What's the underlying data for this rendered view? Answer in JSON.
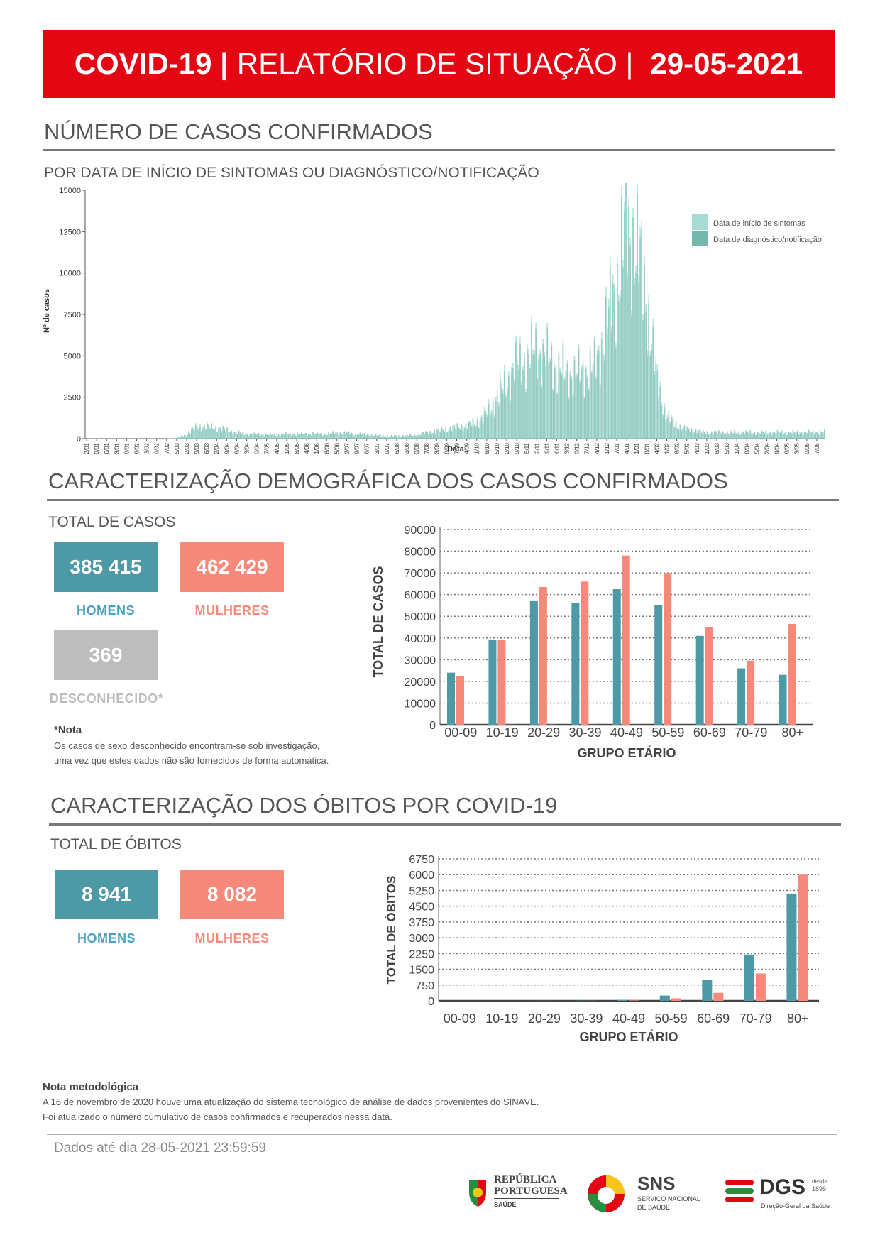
{
  "header": {
    "part1": "COVID-19 |",
    "part2": "RELATÓRIO DE SITUAÇÃO |",
    "date": "29-05-2021"
  },
  "cases_section": {
    "title": "NÚMERO DE CASOS CONFIRMADOS",
    "subtitle": "POR DATA DE INÍCIO DE SINTOMAS OU DIAGNÓSTICO/NOTIFICAÇÃO"
  },
  "demographics_section": {
    "title": "CARACTERIZAÇÃO DEMOGRÁFICA DOS CASOS CONFIRMADOS",
    "total_label": "TOTAL DE CASOS",
    "men_value": "385 415",
    "men_label": "HOMENS",
    "women_value": "462 429",
    "women_label": "MULHERES",
    "unknown_value": "369",
    "unknown_label": "DESCONHECIDO*",
    "note_title": "*Nota",
    "note_line1": "Os casos de sexo desconhecido encontram-se sob investigação,",
    "note_line2": "uma vez que estes dados não são fornecidos de forma automática."
  },
  "deaths_section": {
    "title": "CARACTERIZAÇÃO DOS ÓBITOS POR COVID-19",
    "total_label": "TOTAL DE ÓBITOS",
    "men_value": "8 941",
    "men_label": "HOMENS",
    "women_value": "8 082",
    "women_label": "MULHERES"
  },
  "methodology": {
    "title": "Nota metodológica",
    "line1": "A 16 de novembro de 2020 houve uma atualização do sistema tecnológico de análise de dados provenientes do SINAVE.",
    "line2": "Foi atualizado o número cumulativo de casos confirmados e recuperados nessa data."
  },
  "footer": {
    "data_until": "Dados até dia 28-05-2021 23:59:59"
  },
  "logos": {
    "rp_line1": "REPÚBLICA",
    "rp_line2": "PORTUGUESA",
    "rp_line3": "SAÚDE",
    "sns_title": "SNS",
    "sns_line1": "SERVIÇO NACIONAL",
    "sns_line2": "DE SAÚDE",
    "dgs_title": "DGS",
    "dgs_since1": "desde",
    "dgs_since2": "1899",
    "dgs_sub": "Direção-Geral da Saúde"
  },
  "colors": {
    "red": "#e30613",
    "teal": "#4d9aa6",
    "salmon": "#f7897a",
    "grey": "#bdbdbd",
    "mint_light": "#a6dcd3",
    "mint_dark": "#72b8ad"
  },
  "chart_data": [
    {
      "type": "area",
      "xlabel": "Data",
      "ylabel": "Nº de casos",
      "ylim": [
        0,
        15000
      ],
      "yticks": [
        0,
        2500,
        5000,
        7500,
        10000,
        12500,
        15000
      ],
      "legend_position": "top-right",
      "series_names": [
        "Data de início de sintomas",
        "Data de diagnóstico/notificação"
      ],
      "x_tick_labels": [
        "02/01",
        "09/01",
        "16/01",
        "23/01",
        "30/01",
        "06/02",
        "13/02",
        "20/02",
        "27/02",
        "05/03",
        "12/03",
        "19/03",
        "26/03",
        "02/04",
        "09/04",
        "16/04",
        "23/04",
        "30/04",
        "07/05",
        "14/05",
        "21/05",
        "28/05",
        "04/06",
        "11/06",
        "18/06",
        "25/06",
        "02/07",
        "09/07",
        "16/07",
        "23/07",
        "30/07",
        "06/08",
        "13/08",
        "20/08",
        "27/08",
        "03/09",
        "10/09",
        "17/09",
        "24/09",
        "01/10",
        "08/10",
        "15/10",
        "22/10",
        "29/10",
        "05/11",
        "12/11",
        "19/11",
        "26/11",
        "03/12",
        "10/12",
        "17/12",
        "24/12",
        "31/12",
        "07/01",
        "14/01",
        "21/01",
        "28/01",
        "04/02",
        "11/02",
        "18/02",
        "25/02",
        "04/03",
        "11/03",
        "18/03",
        "25/03",
        "01/04",
        "08/04",
        "15/04",
        "22/04",
        "29/04",
        "06/05",
        "13/05",
        "20/05",
        "27/05"
      ],
      "weekly_symptoms": [
        0,
        0,
        0,
        0,
        0,
        0,
        0,
        0,
        0,
        50,
        300,
        700,
        800,
        700,
        550,
        400,
        300,
        280,
        250,
        250,
        280,
        300,
        300,
        300,
        300,
        350,
        350,
        300,
        250,
        200,
        180,
        170,
        180,
        250,
        350,
        500,
        600,
        700,
        800,
        1000,
        1500,
        2500,
        3500,
        4500,
        5000,
        5500,
        5000,
        4500,
        4000,
        4000,
        4200,
        4500,
        7000,
        9500,
        13000,
        12000,
        9000,
        4000,
        1500,
        900,
        600,
        500,
        400,
        400,
        400,
        400,
        400,
        400,
        400,
        400,
        400,
        400,
        400,
        420
      ],
      "weekly_diagnosis": [
        0,
        0,
        0,
        0,
        0,
        0,
        0,
        0,
        0,
        30,
        200,
        600,
        700,
        650,
        500,
        380,
        280,
        260,
        240,
        240,
        260,
        280,
        290,
        290,
        290,
        330,
        330,
        290,
        240,
        190,
        170,
        160,
        170,
        230,
        330,
        450,
        550,
        650,
        750,
        900,
        1300,
        2200,
        3200,
        4200,
        4700,
        5200,
        4800,
        4300,
        3800,
        3800,
        4000,
        4300,
        6500,
        9000,
        12500,
        11500,
        8500,
        3700,
        1300,
        800,
        550,
        450,
        350,
        350,
        350,
        350,
        350,
        350,
        350,
        350,
        350,
        350,
        350,
        380
      ]
    },
    {
      "type": "bar",
      "xlabel": "GRUPO ETÁRIO",
      "ylabel": "TOTAL DE CASOS",
      "ylim": [
        0,
        90000
      ],
      "yticks": [
        0,
        10000,
        20000,
        30000,
        40000,
        50000,
        60000,
        70000,
        80000,
        90000
      ],
      "categories": [
        "00-09",
        "10-19",
        "20-29",
        "30-39",
        "40-49",
        "50-59",
        "60-69",
        "70-79",
        "80+"
      ],
      "series": [
        {
          "name": "HOMENS",
          "values": [
            24000,
            39000,
            57000,
            56000,
            62500,
            55000,
            41000,
            26000,
            23000
          ]
        },
        {
          "name": "MULHERES",
          "values": [
            22500,
            39000,
            63500,
            66000,
            78000,
            70000,
            45000,
            29500,
            46500
          ]
        },
        {
          "name": "DESCONHECIDO",
          "values": [
            40,
            60,
            70,
            60,
            50,
            40,
            25,
            15,
            10
          ]
        }
      ]
    },
    {
      "type": "bar",
      "xlabel": "GRUPO ETÁRIO",
      "ylabel": "TOTAL DE ÓBITOS",
      "ylim": [
        0,
        6750
      ],
      "yticks": [
        0,
        750,
        1500,
        2250,
        3000,
        3750,
        4500,
        5250,
        6000,
        6750
      ],
      "categories": [
        "00-09",
        "10-19",
        "20-29",
        "30-39",
        "40-49",
        "50-59",
        "60-69",
        "70-79",
        "80+"
      ],
      "series": [
        {
          "name": "HOMENS",
          "values": [
            0,
            0,
            3,
            8,
            40,
            250,
            1000,
            2200,
            5100
          ]
        },
        {
          "name": "MULHERES",
          "values": [
            0,
            0,
            2,
            5,
            20,
            120,
            380,
            1300,
            6000
          ]
        }
      ]
    }
  ]
}
